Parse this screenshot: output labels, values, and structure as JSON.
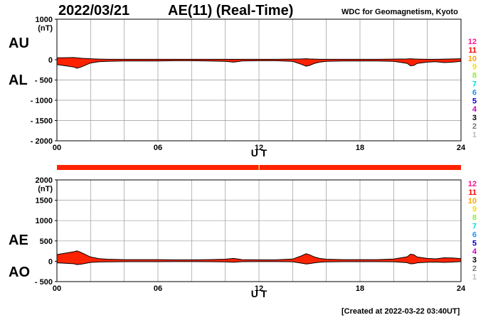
{
  "header": {
    "date": "2022/03/21",
    "title": "AE(11) (Real-Time)",
    "organization": "WDC for Geomagnetism, Kyoto",
    "created": "[Created at 2022-03-22 03:40UT]"
  },
  "labels": {
    "au": "AU",
    "al": "AL",
    "ae": "AE",
    "ao": "AO"
  },
  "colors": {
    "fill": "#ff2200",
    "outline": "#000000",
    "grid": "#999999",
    "coverage_bar": "#ff2200",
    "coverage_mark": "#dddd55"
  },
  "station_count_scale": [
    {
      "label": "12",
      "color": "#ff1493"
    },
    {
      "label": "11",
      "color": "#ff0000"
    },
    {
      "label": "10",
      "color": "#ffa500"
    },
    {
      "label": "9",
      "color": "#f0e000"
    },
    {
      "label": "8",
      "color": "#90ee30"
    },
    {
      "label": "7",
      "color": "#00e0e0"
    },
    {
      "label": "6",
      "color": "#1e90ff"
    },
    {
      "label": "5",
      "color": "#0000cc"
    },
    {
      "label": "4",
      "color": "#cc00cc"
    },
    {
      "label": "3",
      "color": "#000000"
    },
    {
      "label": "2",
      "color": "#777777"
    },
    {
      "label": "1",
      "color": "#bbbbbb"
    }
  ],
  "chart_data": [
    {
      "type": "area",
      "panel": "AU/AL",
      "xlabel": "U T",
      "ylabel": "(nT)",
      "xlim": [
        0,
        24
      ],
      "ylim": [
        -2000,
        1000
      ],
      "x_ticks": [
        0,
        6,
        12,
        18,
        24
      ],
      "x_tick_labels": [
        "00",
        "06",
        "12",
        "18",
        "24"
      ],
      "y_ticks": [
        1000,
        0,
        -500,
        -1000,
        -1500,
        -2000
      ],
      "y_tick_labels": [
        "1000",
        "0",
        "- 500",
        "- 1000",
        "- 1500",
        "- 2000"
      ],
      "grid": true,
      "x": [
        0,
        0.5,
        1.0,
        1.2,
        1.5,
        2.0,
        2.5,
        3,
        4,
        5,
        6,
        7,
        8,
        9,
        10,
        10.5,
        11,
        12,
        13,
        14,
        14.5,
        14.8,
        15.0,
        15.3,
        15.6,
        16,
        17,
        18,
        19,
        20,
        20.8,
        21.0,
        21.2,
        21.4,
        22,
        22.5,
        23,
        23.5,
        24
      ],
      "series": [
        {
          "key": "AU",
          "values": [
            45,
            50,
            55,
            45,
            35,
            25,
            15,
            10,
            10,
            10,
            10,
            10,
            10,
            10,
            10,
            10,
            10,
            10,
            10,
            15,
            20,
            25,
            20,
            15,
            10,
            10,
            10,
            10,
            10,
            15,
            20,
            25,
            20,
            15,
            10,
            10,
            15,
            20,
            25
          ]
        },
        {
          "key": "AL",
          "values": [
            -120,
            -150,
            -180,
            -210,
            -170,
            -80,
            -50,
            -40,
            -30,
            -30,
            -30,
            -25,
            -25,
            -30,
            -40,
            -60,
            -30,
            -25,
            -25,
            -40,
            -110,
            -160,
            -140,
            -90,
            -60,
            -40,
            -30,
            -30,
            -30,
            -40,
            -90,
            -150,
            -140,
            -90,
            -60,
            -50,
            -70,
            -60,
            -40
          ]
        }
      ]
    },
    {
      "type": "area",
      "panel": "AE/AO",
      "xlabel": "U T",
      "ylabel": "(nT)",
      "xlim": [
        0,
        24
      ],
      "ylim": [
        -500,
        2000
      ],
      "x_ticks": [
        0,
        6,
        12,
        18,
        24
      ],
      "x_tick_labels": [
        "00",
        "06",
        "12",
        "18",
        "24"
      ],
      "y_ticks": [
        2000,
        1500,
        1000,
        500,
        0,
        -500
      ],
      "y_tick_labels": [
        "2000",
        "1500",
        "1000",
        "500",
        "0",
        "- 500"
      ],
      "grid": true,
      "x": [
        0,
        0.5,
        1.0,
        1.2,
        1.5,
        2.0,
        2.5,
        3,
        4,
        5,
        6,
        7,
        8,
        9,
        10,
        10.5,
        11,
        12,
        13,
        14,
        14.5,
        14.8,
        15.0,
        15.3,
        15.6,
        16,
        17,
        18,
        19,
        20,
        20.8,
        21.0,
        21.2,
        21.4,
        22,
        22.5,
        23,
        23.5,
        24
      ],
      "series": [
        {
          "key": "AE",
          "values": [
            165,
            200,
            235,
            255,
            205,
            105,
            65,
            50,
            40,
            40,
            40,
            35,
            35,
            40,
            50,
            70,
            40,
            35,
            35,
            55,
            130,
            185,
            160,
            105,
            70,
            50,
            40,
            40,
            40,
            55,
            110,
            175,
            160,
            105,
            70,
            60,
            85,
            80,
            65
          ]
        },
        {
          "key": "AO",
          "values": [
            -38,
            -50,
            -62,
            -83,
            -68,
            -28,
            -18,
            -15,
            -10,
            -10,
            -10,
            -8,
            -8,
            -10,
            -15,
            -25,
            -10,
            -8,
            -8,
            -13,
            -45,
            -68,
            -60,
            -38,
            -25,
            -15,
            -10,
            -10,
            -10,
            -13,
            -35,
            -63,
            -60,
            -38,
            -25,
            -20,
            -28,
            -20,
            -8
          ]
        }
      ]
    }
  ]
}
